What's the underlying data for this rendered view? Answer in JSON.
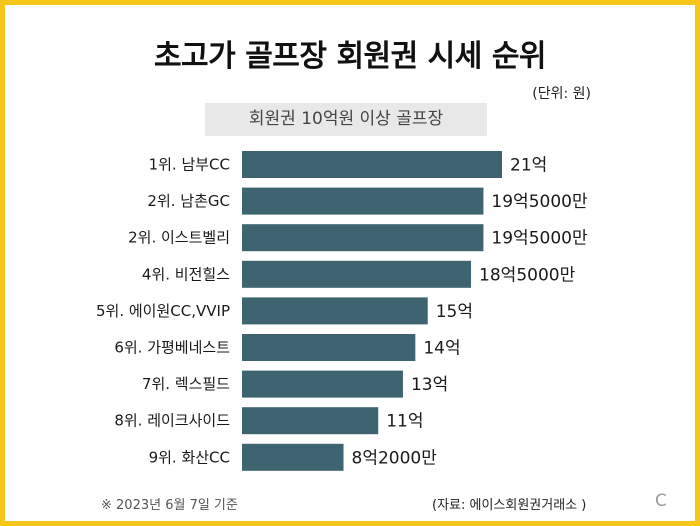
{
  "title": "초고가 골프장 회원권 시세 순위",
  "unit": "(단위: 원)",
  "subtitle": "회원권 10억원 이상 골프장",
  "footnote": "※ 2023년 6월 7일 기준",
  "source": "(자료: 에이스회원권거래소 )",
  "corner_mark": "C",
  "colors": {
    "bar": "#3d6470",
    "border": "#f5c518",
    "subtitle_bg": "#e8e8e8"
  },
  "chart_data": {
    "type": "bar",
    "orientation": "horizontal",
    "title": "초고가 골프장 회원권 시세 순위",
    "subtitle": "회원권 10억원 이상 골프장",
    "unit": "원",
    "categories": [
      "1위. 남부CC",
      "2위. 남촌GC",
      "2위. 이스트벨리",
      "4위. 비전힐스",
      "5위. 에이원CC,VVIP",
      "6위. 가평베네스트",
      "7위. 렉스필드",
      "8위. 레이크사이드",
      "9위. 화산CC"
    ],
    "values": [
      2100000000,
      1950000000,
      1950000000,
      1850000000,
      1500000000,
      1400000000,
      1300000000,
      1100000000,
      820000000
    ],
    "value_labels": [
      "21억",
      "19억5000만",
      "19억5000만",
      "18억5000만",
      "15억",
      "14억",
      "13억",
      "11억",
      "8억2000만"
    ],
    "xlim": [
      0,
      2100000000
    ],
    "grid": false,
    "legend": "none"
  }
}
